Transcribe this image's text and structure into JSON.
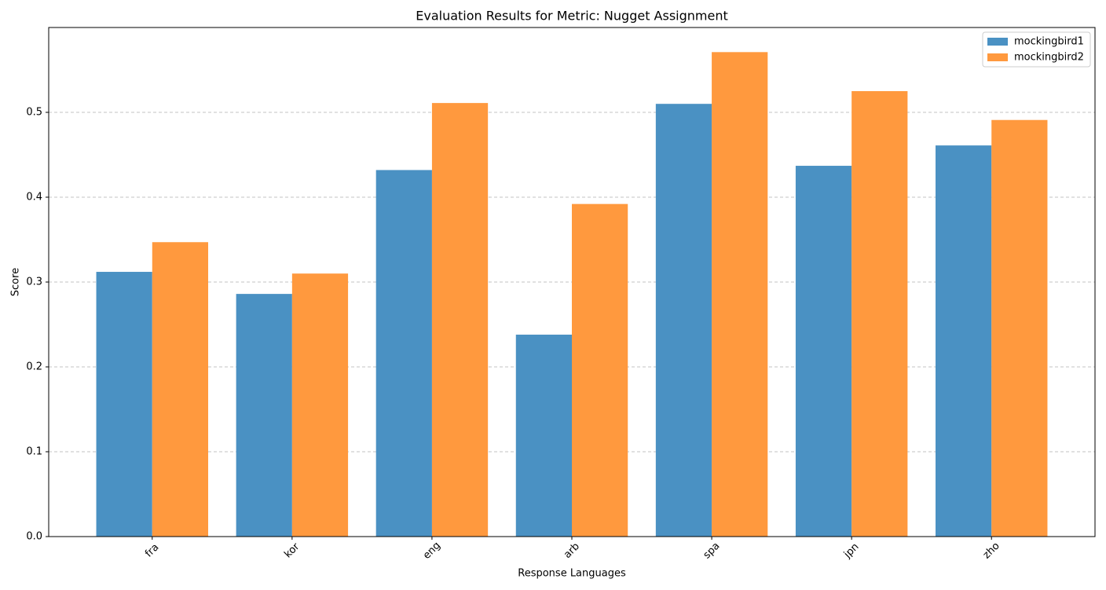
{
  "chart_data": {
    "type": "bar",
    "title": "Evaluation Results for Metric: Nugget Assignment",
    "x_label": "Response Languages",
    "y_label": "Score",
    "categories": [
      "fra",
      "kor",
      "eng",
      "arb",
      "spa",
      "jpn",
      "zho"
    ],
    "series": [
      {
        "name": "mockingbird1",
        "color": "#4a91c3",
        "values": [
          0.312,
          0.286,
          0.432,
          0.238,
          0.51,
          0.437,
          0.461
        ]
      },
      {
        "name": "mockingbird2",
        "color": "#ff993e",
        "values": [
          0.347,
          0.31,
          0.511,
          0.392,
          0.571,
          0.525,
          0.491
        ]
      }
    ],
    "ylim": [
      0,
      0.6
    ],
    "yticks": [
      0.0,
      0.1,
      0.2,
      0.3,
      0.4,
      0.5
    ],
    "grid": true,
    "legend": "upper-right"
  }
}
